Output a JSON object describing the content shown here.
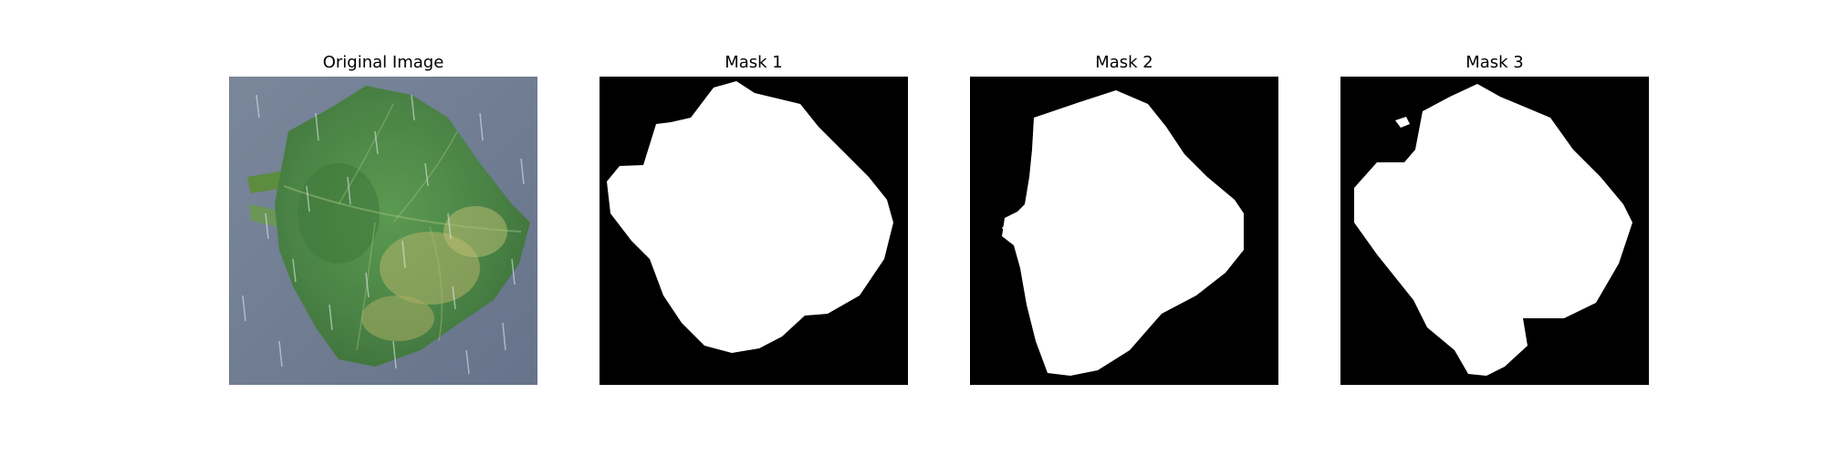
{
  "panels": [
    {
      "title": "Original Image"
    },
    {
      "title": "Mask 1"
    },
    {
      "title": "Mask 2"
    },
    {
      "title": "Mask 3"
    }
  ],
  "colors": {
    "background": "#ffffff",
    "mask_background": "#000000",
    "mask_foreground": "#ffffff",
    "photo_backdrop": "#6f7d92",
    "leaf_green": "#4e8a4a",
    "leaf_yellow": "#b5b56a"
  }
}
